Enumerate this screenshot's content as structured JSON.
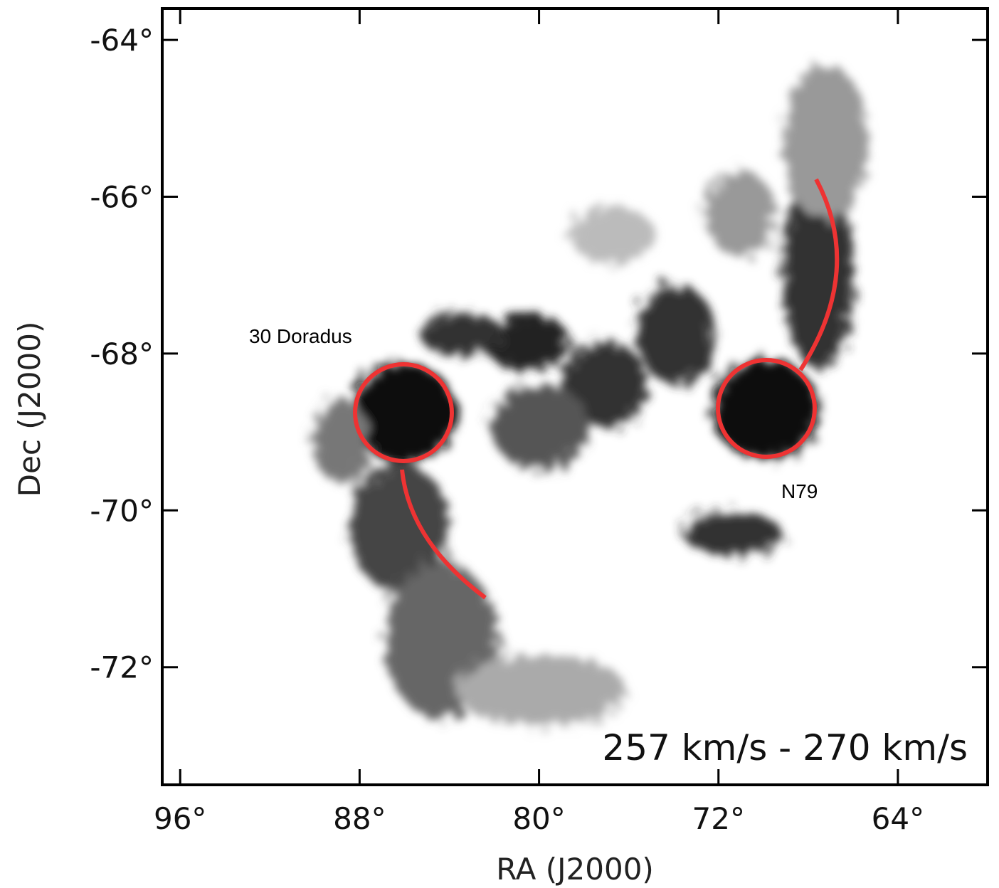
{
  "chart_data": {
    "type": "image",
    "xlabel": "RA (J2000)",
    "ylabel": "Dec (J2000)",
    "label": "257 km/s - 270 km/s",
    "annotations": [
      "30 Doradus",
      "N79"
    ],
    "xlim": [
      96.8,
      60
    ],
    "xticks": [
      {
        "value": 96,
        "label": "96°"
      },
      {
        "value": 88,
        "label": "88°"
      },
      {
        "value": 80,
        "label": "80°"
      },
      {
        "value": 72,
        "label": "72°"
      },
      {
        "value": 64,
        "label": "64°"
      }
    ],
    "ylim": [
      -73.5,
      -63.6
    ],
    "yticks": [
      {
        "value": -64,
        "label": "-64°"
      },
      {
        "value": -66,
        "label": "-66°"
      },
      {
        "value": -68,
        "label": "-68°"
      },
      {
        "value": -70,
        "label": "-70°"
      },
      {
        "value": -72,
        "label": "-72°"
      }
    ]
  }
}
